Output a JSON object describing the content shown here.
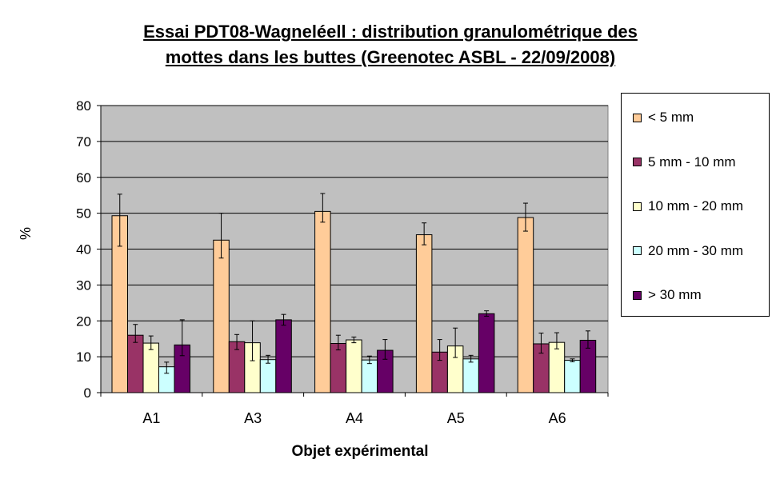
{
  "chart_data": {
    "type": "bar",
    "title_line1": "Essai PDT08-Wagneléell : distribution granulométrique des",
    "title_line2": "mottes dans les buttes (Greenotec ASBL - 22/09/2008)",
    "xlabel": "Objet expérimental",
    "ylabel": "%",
    "ylim": [
      0,
      80
    ],
    "yticks": [
      0,
      10,
      20,
      30,
      40,
      50,
      60,
      70,
      80
    ],
    "categories": [
      "A1",
      "A3",
      "A4",
      "A5",
      "A6"
    ],
    "legend_position": "right",
    "plot_background": "#c0c0c0",
    "series": [
      {
        "name": "< 5 mm",
        "color": "#ffcc99",
        "values": [
          49.3,
          42.5,
          50.5,
          44.0,
          48.8
        ],
        "err_low": [
          8.5,
          5.0,
          3.0,
          2.8,
          3.8
        ],
        "err_high": [
          6.0,
          7.5,
          5.0,
          3.3,
          4.0
        ]
      },
      {
        "name": "5 mm - 10 mm",
        "color": "#993366",
        "values": [
          16.0,
          14.2,
          13.7,
          11.3,
          13.6
        ],
        "err_low": [
          2.0,
          2.2,
          1.8,
          2.3,
          2.6
        ],
        "err_high": [
          3.0,
          2.0,
          2.3,
          3.5,
          3.0
        ]
      },
      {
        "name": "10 mm - 20 mm",
        "color": "#ffffcc",
        "values": [
          13.8,
          13.9,
          14.7,
          13.0,
          14.0
        ],
        "err_low": [
          1.8,
          5.0,
          0.8,
          3.2,
          1.8
        ],
        "err_high": [
          2.0,
          6.1,
          0.8,
          5.0,
          2.7
        ]
      },
      {
        "name": "20 mm - 30 mm",
        "color": "#ccffff",
        "values": [
          7.2,
          9.2,
          9.1,
          9.4,
          9.0
        ],
        "err_low": [
          1.8,
          1.0,
          1.0,
          0.9,
          0.4
        ],
        "err_high": [
          1.3,
          1.2,
          1.1,
          1.0,
          0.4
        ]
      },
      {
        "name": "> 30 mm",
        "color": "#660066",
        "values": [
          13.3,
          20.3,
          11.8,
          22.0,
          14.6
        ],
        "err_low": [
          3.0,
          1.5,
          2.5,
          0.7,
          2.2
        ],
        "err_high": [
          7.0,
          1.5,
          3.0,
          0.8,
          2.6
        ]
      }
    ]
  }
}
